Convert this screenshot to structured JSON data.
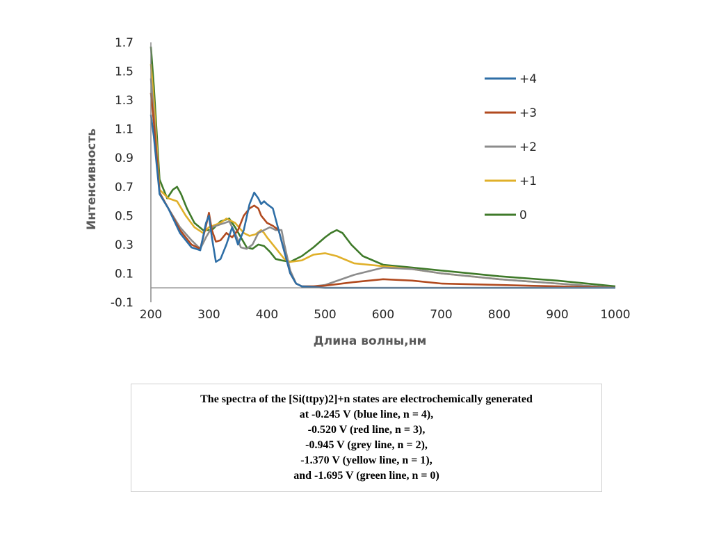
{
  "chart_data": {
    "type": "line",
    "title": "",
    "xlabel": "Длина волны,нм",
    "ylabel": "Интенсивность",
    "xlim": [
      200,
      1000
    ],
    "ylim": [
      -0.1,
      1.7
    ],
    "x_ticks": [
      "200",
      "300",
      "400",
      "500",
      "600",
      "700",
      "800",
      "900",
      "1000"
    ],
    "y_ticks": [
      "1.7",
      "1.5",
      "1.3",
      "1.1",
      "0.9",
      "0.7",
      "0.5",
      "0.3",
      "0.1",
      "-0.1"
    ],
    "grid": false,
    "legend_position": "right",
    "series": [
      {
        "name": "+4",
        "color": "#2e6ea6",
        "x": [
          200,
          205,
          215,
          230,
          250,
          270,
          285,
          295,
          300,
          305,
          312,
          320,
          330,
          340,
          350,
          360,
          370,
          378,
          385,
          390,
          395,
          400,
          410,
          420,
          430,
          440,
          450,
          460,
          480,
          500,
          550,
          600,
          650,
          700,
          800,
          900,
          1000
        ],
        "y": [
          1.2,
          1.05,
          0.65,
          0.55,
          0.38,
          0.28,
          0.26,
          0.45,
          0.5,
          0.35,
          0.18,
          0.2,
          0.3,
          0.42,
          0.3,
          0.4,
          0.58,
          0.66,
          0.62,
          0.58,
          0.6,
          0.58,
          0.55,
          0.4,
          0.25,
          0.1,
          0.03,
          0.01,
          0.005,
          0.0,
          0.0,
          0.0,
          0.0,
          0.0,
          0.0,
          0.0,
          0.0
        ]
      },
      {
        "name": "+3",
        "color": "#b14a1f",
        "x": [
          200,
          205,
          215,
          230,
          250,
          270,
          285,
          295,
          300,
          305,
          312,
          320,
          330,
          340,
          350,
          360,
          370,
          378,
          385,
          390,
          400,
          410,
          420,
          430,
          440,
          450,
          460,
          480,
          500,
          550,
          600,
          650,
          700,
          800,
          900,
          1000
        ],
        "y": [
          1.35,
          1.15,
          0.66,
          0.55,
          0.4,
          0.3,
          0.27,
          0.43,
          0.52,
          0.4,
          0.32,
          0.33,
          0.38,
          0.35,
          0.4,
          0.5,
          0.55,
          0.57,
          0.55,
          0.5,
          0.45,
          0.43,
          0.4,
          0.25,
          0.1,
          0.03,
          0.01,
          0.01,
          0.015,
          0.04,
          0.06,
          0.05,
          0.03,
          0.02,
          0.01,
          0.0
        ]
      },
      {
        "name": "+2",
        "color": "#8c8c8c",
        "x": [
          200,
          205,
          215,
          230,
          250,
          270,
          285,
          295,
          305,
          320,
          335,
          345,
          355,
          365,
          375,
          385,
          395,
          405,
          415,
          425,
          430,
          440,
          450,
          460,
          480,
          500,
          550,
          600,
          650,
          700,
          800,
          900,
          1000
        ],
        "y": [
          1.45,
          1.2,
          0.65,
          0.55,
          0.42,
          0.33,
          0.27,
          0.35,
          0.42,
          0.44,
          0.46,
          0.38,
          0.28,
          0.27,
          0.3,
          0.38,
          0.4,
          0.42,
          0.4,
          0.4,
          0.3,
          0.12,
          0.03,
          0.01,
          0.01,
          0.02,
          0.09,
          0.14,
          0.13,
          0.1,
          0.06,
          0.03,
          0.0
        ]
      },
      {
        "name": "+1",
        "color": "#e0b02a",
        "x": [
          200,
          205,
          215,
          230,
          245,
          260,
          275,
          290,
          300,
          320,
          330,
          345,
          360,
          370,
          380,
          390,
          395,
          400,
          410,
          420,
          430,
          440,
          460,
          480,
          500,
          520,
          550,
          600,
          650,
          700,
          800,
          900,
          1000
        ],
        "y": [
          1.55,
          1.3,
          0.68,
          0.62,
          0.6,
          0.5,
          0.42,
          0.38,
          0.42,
          0.45,
          0.48,
          0.45,
          0.38,
          0.36,
          0.37,
          0.4,
          0.38,
          0.35,
          0.3,
          0.25,
          0.2,
          0.18,
          0.19,
          0.23,
          0.24,
          0.22,
          0.17,
          0.15,
          0.13,
          0.1,
          0.06,
          0.03,
          0.0
        ]
      },
      {
        "name": "0",
        "color": "#3f7a2a",
        "x": [
          200,
          205,
          215,
          228,
          238,
          245,
          252,
          262,
          275,
          290,
          305,
          320,
          335,
          345,
          355,
          365,
          375,
          385,
          395,
          405,
          415,
          425,
          440,
          460,
          480,
          500,
          510,
          520,
          530,
          545,
          565,
          600,
          650,
          700,
          800,
          900,
          1000
        ],
        "y": [
          1.67,
          1.4,
          0.75,
          0.62,
          0.68,
          0.7,
          0.65,
          0.55,
          0.45,
          0.4,
          0.4,
          0.46,
          0.48,
          0.42,
          0.35,
          0.28,
          0.27,
          0.3,
          0.29,
          0.25,
          0.2,
          0.19,
          0.18,
          0.22,
          0.28,
          0.35,
          0.38,
          0.4,
          0.38,
          0.3,
          0.22,
          0.16,
          0.14,
          0.12,
          0.08,
          0.05,
          0.01
        ]
      }
    ]
  },
  "caption": {
    "lines": [
      "The spectra of the [Si(ttpy)2]+n states are electrochemically generated",
      "at -0.245 V (blue line, n = 4),",
      "-0.520 V (red line, n = 3),",
      "-0.945 V (grey line, n = 2),",
      "-1.370 V (yellow line, n = 1),",
      "and -1.695 V (green line, n = 0)"
    ]
  }
}
